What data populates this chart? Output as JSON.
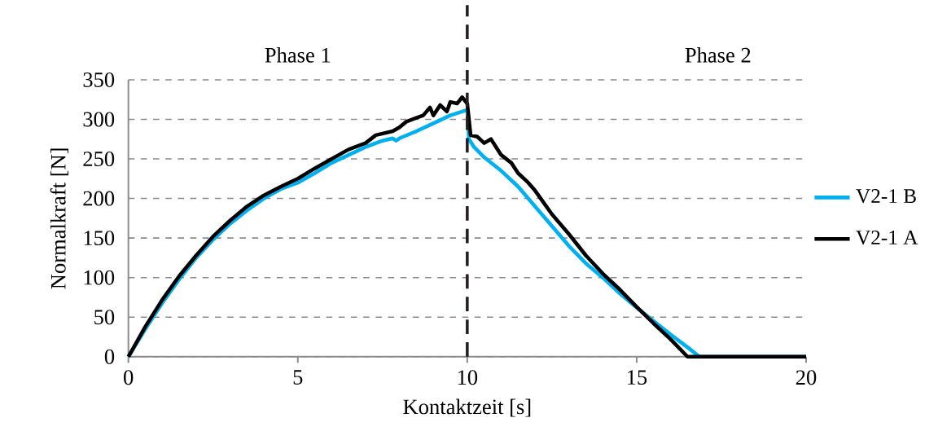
{
  "chart_data": {
    "type": "line",
    "xlabel": "Kontaktzeit [s]",
    "ylabel": "Normalkraft [N]",
    "xlim": [
      0,
      20
    ],
    "xticks": [
      0,
      5,
      10,
      15,
      20
    ],
    "ylim": [
      0,
      350
    ],
    "yticks": [
      0,
      50,
      100,
      150,
      200,
      250,
      300,
      350
    ],
    "grid": "y",
    "legend": "right",
    "line_style": "solid",
    "marker": "none",
    "annotations": [
      "Phase 1",
      "Phase 2"
    ],
    "ref_lines": [
      {
        "axis": "x",
        "value": 10,
        "color": "#231f20",
        "line_style": "dashed"
      }
    ],
    "series": [
      {
        "name": "V2-1 B",
        "color": "#00b0f0",
        "x": [
          0,
          0.5,
          1,
          1.5,
          2,
          2.5,
          3,
          3.5,
          4,
          4.5,
          5,
          5.5,
          6,
          6.5,
          7,
          7.5,
          7.8,
          7.9,
          8,
          8.5,
          9,
          9.5,
          10,
          10.05,
          10.2,
          10.5,
          11,
          11.5,
          12,
          12.5,
          13,
          13.5,
          14,
          14.5,
          15,
          15.5,
          16,
          16.5,
          16.85,
          20
        ],
        "values": [
          0,
          35,
          68,
          98,
          125,
          148,
          168,
          185,
          200,
          212,
          220,
          232,
          245,
          255,
          265,
          273,
          276,
          273,
          276,
          285,
          295,
          305,
          312,
          275,
          265,
          252,
          235,
          215,
          190,
          165,
          140,
          118,
          100,
          80,
          62,
          45,
          28,
          12,
          0,
          0
        ]
      },
      {
        "name": "V2-1 A",
        "color": "#000000",
        "x": [
          0,
          0.5,
          1,
          1.5,
          2,
          2.5,
          3,
          3.5,
          4,
          4.5,
          5,
          5.5,
          6,
          6.5,
          7,
          7.3,
          7.8,
          8,
          8.2,
          8.5,
          8.7,
          8.9,
          9,
          9.2,
          9.4,
          9.5,
          9.7,
          9.85,
          10,
          10.1,
          10.3,
          10.5,
          10.7,
          11,
          11.3,
          11.5,
          11.8,
          12,
          12.5,
          13,
          13.5,
          14,
          14.5,
          15,
          15.5,
          16,
          16.5,
          20
        ],
        "values": [
          0,
          38,
          72,
          102,
          128,
          152,
          172,
          190,
          204,
          215,
          225,
          238,
          250,
          262,
          270,
          280,
          285,
          290,
          297,
          302,
          305,
          315,
          305,
          318,
          310,
          322,
          320,
          328,
          320,
          280,
          278,
          270,
          275,
          255,
          245,
          232,
          220,
          210,
          180,
          155,
          128,
          105,
          85,
          63,
          42,
          22,
          0,
          0
        ]
      }
    ]
  }
}
